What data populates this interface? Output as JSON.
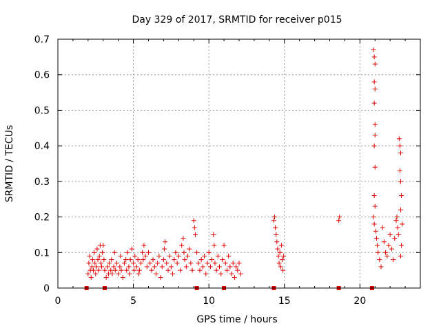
{
  "chart_data": {
    "type": "scatter",
    "title": "Day 329 of 2017, SRMTID for receiver p015",
    "xlabel": "GPS time / hours",
    "ylabel": "SRMTID / TECUs",
    "xlim": [
      0,
      24
    ],
    "ylim": [
      0,
      0.7
    ],
    "xticks": [
      0,
      5,
      10,
      15,
      20
    ],
    "xtick_labels": [
      "0",
      "5",
      "10",
      "15",
      "20"
    ],
    "yticks": [
      0,
      0.1,
      0.2,
      0.3,
      0.4,
      0.5,
      0.6,
      0.7
    ],
    "ytick_labels": [
      "0",
      "0.1",
      "0.2",
      "0.3",
      "0.4",
      "0.5",
      "0.6",
      "0.7"
    ],
    "grid": true,
    "marker": "+",
    "color": "#e00000",
    "gap_markers_x": [
      1.9,
      3.1,
      9.2,
      11.0,
      14.3,
      18.6,
      20.8
    ],
    "series": [
      {
        "name": "SRMTID",
        "points": [
          [
            2.0,
            0.04
          ],
          [
            2.05,
            0.07
          ],
          [
            2.1,
            0.09
          ],
          [
            2.15,
            0.05
          ],
          [
            2.2,
            0.03
          ],
          [
            2.25,
            0.06
          ],
          [
            2.3,
            0.08
          ],
          [
            2.35,
            0.05
          ],
          [
            2.4,
            0.1
          ],
          [
            2.45,
            0.07
          ],
          [
            2.5,
            0.04
          ],
          [
            2.55,
            0.06
          ],
          [
            2.6,
            0.11
          ],
          [
            2.65,
            0.08
          ],
          [
            2.7,
            0.05
          ],
          [
            2.75,
            0.09
          ],
          [
            2.8,
            0.12
          ],
          [
            2.85,
            0.07
          ],
          [
            2.9,
            0.06
          ],
          [
            2.95,
            0.1
          ],
          [
            3.0,
            0.12
          ],
          [
            3.05,
            0.08
          ],
          [
            3.1,
            0.05
          ],
          [
            3.2,
            0.03
          ],
          [
            3.3,
            0.06
          ],
          [
            3.35,
            0.04
          ],
          [
            3.4,
            0.07
          ],
          [
            3.5,
            0.05
          ],
          [
            3.55,
            0.08
          ],
          [
            3.6,
            0.04
          ],
          [
            3.7,
            0.06
          ],
          [
            3.75,
            0.1
          ],
          [
            3.8,
            0.05
          ],
          [
            3.9,
            0.07
          ],
          [
            4.0,
            0.04
          ],
          [
            4.1,
            0.06
          ],
          [
            4.15,
            0.09
          ],
          [
            4.2,
            0.05
          ],
          [
            4.3,
            0.03
          ],
          [
            4.4,
            0.07
          ],
          [
            4.5,
            0.08
          ],
          [
            4.55,
            0.05
          ],
          [
            4.6,
            0.1
          ],
          [
            4.7,
            0.06
          ],
          [
            4.75,
            0.04
          ],
          [
            4.8,
            0.08
          ],
          [
            4.9,
            0.11
          ],
          [
            5.0,
            0.07
          ],
          [
            5.05,
            0.05
          ],
          [
            5.1,
            0.09
          ],
          [
            5.2,
            0.06
          ],
          [
            5.3,
            0.08
          ],
          [
            5.35,
            0.04
          ],
          [
            5.4,
            0.05
          ],
          [
            5.5,
            0.07
          ],
          [
            5.6,
            0.1
          ],
          [
            5.65,
            0.08
          ],
          [
            5.7,
            0.12
          ],
          [
            5.8,
            0.09
          ],
          [
            5.9,
            0.06
          ],
          [
            6.0,
            0.1
          ],
          [
            6.1,
            0.07
          ],
          [
            6.2,
            0.05
          ],
          [
            6.3,
            0.08
          ],
          [
            6.4,
            0.06
          ],
          [
            6.5,
            0.04
          ],
          [
            6.6,
            0.07
          ],
          [
            6.7,
            0.09
          ],
          [
            6.8,
            0.03
          ],
          [
            6.9,
            0.06
          ],
          [
            7.0,
            0.08
          ],
          [
            7.05,
            0.11
          ],
          [
            7.1,
            0.13
          ],
          [
            7.2,
            0.07
          ],
          [
            7.3,
            0.05
          ],
          [
            7.4,
            0.09
          ],
          [
            7.5,
            0.06
          ],
          [
            7.6,
            0.04
          ],
          [
            7.7,
            0.08
          ],
          [
            7.8,
            0.1
          ],
          [
            7.9,
            0.07
          ],
          [
            8.0,
            0.09
          ],
          [
            8.1,
            0.05
          ],
          [
            8.2,
            0.12
          ],
          [
            8.3,
            0.14
          ],
          [
            8.35,
            0.1
          ],
          [
            8.4,
            0.08
          ],
          [
            8.5,
            0.06
          ],
          [
            8.6,
            0.09
          ],
          [
            8.7,
            0.11
          ],
          [
            8.8,
            0.07
          ],
          [
            8.9,
            0.05
          ],
          [
            9.0,
            0.19
          ],
          [
            9.05,
            0.17
          ],
          [
            9.1,
            0.15
          ],
          [
            9.2,
            0.1
          ],
          [
            9.3,
            0.07
          ],
          [
            9.4,
            0.05
          ],
          [
            9.5,
            0.08
          ],
          [
            9.6,
            0.06
          ],
          [
            9.7,
            0.09
          ],
          [
            9.8,
            0.04
          ],
          [
            9.9,
            0.07
          ],
          [
            10.0,
            0.1
          ],
          [
            10.1,
            0.06
          ],
          [
            10.2,
            0.08
          ],
          [
            10.3,
            0.15
          ],
          [
            10.35,
            0.12
          ],
          [
            10.4,
            0.07
          ],
          [
            10.5,
            0.05
          ],
          [
            10.6,
            0.09
          ],
          [
            10.7,
            0.06
          ],
          [
            10.8,
            0.04
          ],
          [
            10.9,
            0.08
          ],
          [
            11.0,
            0.12
          ],
          [
            11.1,
            0.07
          ],
          [
            11.2,
            0.05
          ],
          [
            11.3,
            0.09
          ],
          [
            11.4,
            0.06
          ],
          [
            11.5,
            0.04
          ],
          [
            11.6,
            0.07
          ],
          [
            11.7,
            0.03
          ],
          [
            11.8,
            0.06
          ],
          [
            11.9,
            0.05
          ],
          [
            12.0,
            0.07
          ],
          [
            12.1,
            0.04
          ],
          [
            14.3,
            0.19
          ],
          [
            14.35,
            0.2
          ],
          [
            14.4,
            0.17
          ],
          [
            14.45,
            0.15
          ],
          [
            14.5,
            0.13
          ],
          [
            14.55,
            0.11
          ],
          [
            14.6,
            0.09
          ],
          [
            14.65,
            0.07
          ],
          [
            14.7,
            0.1
          ],
          [
            14.75,
            0.06
          ],
          [
            14.8,
            0.12
          ],
          [
            14.85,
            0.08
          ],
          [
            14.9,
            0.05
          ],
          [
            14.95,
            0.09
          ],
          [
            18.6,
            0.19
          ],
          [
            18.65,
            0.2
          ],
          [
            20.9,
            0.67
          ],
          [
            20.95,
            0.65
          ],
          [
            21.0,
            0.63
          ],
          [
            20.95,
            0.58
          ],
          [
            21.0,
            0.56
          ],
          [
            20.95,
            0.52
          ],
          [
            21.0,
            0.46
          ],
          [
            21.0,
            0.43
          ],
          [
            20.95,
            0.4
          ],
          [
            21.0,
            0.34
          ],
          [
            20.95,
            0.26
          ],
          [
            21.0,
            0.23
          ],
          [
            20.9,
            0.2
          ],
          [
            20.95,
            0.18
          ],
          [
            21.05,
            0.16
          ],
          [
            21.1,
            0.14
          ],
          [
            21.15,
            0.12
          ],
          [
            21.2,
            0.1
          ],
          [
            21.3,
            0.08
          ],
          [
            21.4,
            0.06
          ],
          [
            21.5,
            0.17
          ],
          [
            21.6,
            0.13
          ],
          [
            21.7,
            0.1
          ],
          [
            21.8,
            0.09
          ],
          [
            21.9,
            0.12
          ],
          [
            22.0,
            0.15
          ],
          [
            22.1,
            0.11
          ],
          [
            22.2,
            0.08
          ],
          [
            22.3,
            0.14
          ],
          [
            22.4,
            0.19
          ],
          [
            22.45,
            0.2
          ],
          [
            22.5,
            0.17
          ],
          [
            22.55,
            0.15
          ],
          [
            22.6,
            0.42
          ],
          [
            22.65,
            0.4
          ],
          [
            22.7,
            0.38
          ],
          [
            22.65,
            0.33
          ],
          [
            22.7,
            0.3
          ],
          [
            22.75,
            0.26
          ],
          [
            22.7,
            0.22
          ],
          [
            22.8,
            0.18
          ],
          [
            22.75,
            0.12
          ],
          [
            22.7,
            0.09
          ]
        ]
      }
    ]
  }
}
